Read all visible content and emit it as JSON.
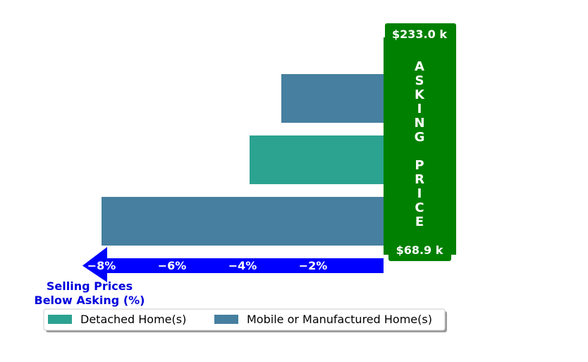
{
  "chart_data": {
    "type": "bar",
    "orientation": "horizontal",
    "categories": [
      "Mobile or Manufactured Home(s)",
      "Detached Home(s)",
      "Mobile or Manufactured Home(s)"
    ],
    "bars": [
      {
        "series": "Mobile or Manufactured Home(s)",
        "value": -2.9
      },
      {
        "series": "Detached Home(s)",
        "value": -3.8
      },
      {
        "series": "Mobile or Manufactured Home(s)",
        "value": -8.0
      }
    ],
    "xlim": [
      -9.5,
      0
    ],
    "x_ticks": [
      -8,
      -6,
      -4,
      -2
    ],
    "x_tick_labels": [
      "−8%",
      "−6%",
      "−4%",
      "−2%"
    ],
    "xlabel": "Selling Prices\nBelow Asking (%)",
    "asking_price_label": "ASKING PRICE",
    "price_top_label": "$233.0 k",
    "price_bottom_label": "$68.9 k",
    "legend": {
      "placement": "bottom",
      "entries": [
        {
          "name": "Detached Home(s)",
          "color": "#2ca291"
        },
        {
          "name": "Mobile or Manufactured Home(s)",
          "color": "#467f9f"
        }
      ]
    },
    "colors": {
      "Detached Home(s)": "#2ca291",
      "Mobile or Manufactured Home(s)": "#467f9f",
      "asking_box": "#008000",
      "axis_arrow": "#0000ff",
      "label_text": "#0000dd"
    },
    "grid": false
  }
}
